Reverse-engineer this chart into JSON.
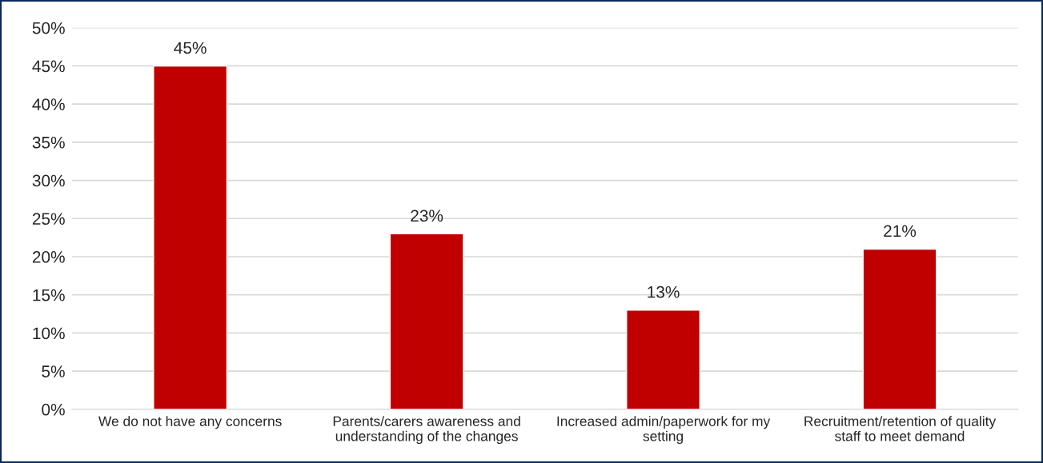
{
  "chart_data": {
    "type": "bar",
    "categories": [
      "We do not have any concerns",
      "Parents/carers awareness and\nunderstanding of the changes",
      "Increased admin/paperwork for my\nsetting",
      "Recruitment/retention of quality\nstaff to meet demand"
    ],
    "values": [
      45,
      23,
      13,
      21
    ],
    "value_labels": [
      "45%",
      "23%",
      "13%",
      "21%"
    ],
    "color": "#c00000",
    "ylim": [
      0,
      50
    ],
    "yticks": [
      {
        "value": 0,
        "label": "0%"
      },
      {
        "value": 5,
        "label": "5%"
      },
      {
        "value": 10,
        "label": "10%"
      },
      {
        "value": 15,
        "label": "15%"
      },
      {
        "value": 20,
        "label": "20%"
      },
      {
        "value": 25,
        "label": "25%"
      },
      {
        "value": 30,
        "label": "30%"
      },
      {
        "value": 35,
        "label": "35%"
      },
      {
        "value": 40,
        "label": "40%"
      },
      {
        "value": 45,
        "label": "45%"
      },
      {
        "value": 50,
        "label": "50%"
      }
    ],
    "grid": "y",
    "legend": false
  }
}
